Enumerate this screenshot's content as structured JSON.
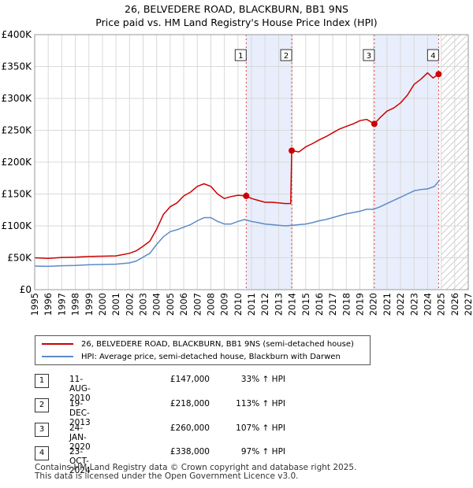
{
  "title_line1": "26, BELVEDERE ROAD, BLACKBURN, BB1 9NS",
  "title_line2": "Price paid vs. HM Land Registry's House Price Index (HPI)",
  "chart_data": {
    "type": "line",
    "title": "Price paid vs. HM Land Registry's House Price Index (HPI)",
    "xlabel": "",
    "ylabel": "",
    "xlim": [
      1995,
      2027
    ],
    "ylim": [
      0,
      400000
    ],
    "x_ticks": [
      "1995",
      "1996",
      "1997",
      "1998",
      "1999",
      "2000",
      "2001",
      "2002",
      "2003",
      "2004",
      "2005",
      "2006",
      "2007",
      "2008",
      "2009",
      "2010",
      "2011",
      "2012",
      "2013",
      "2014",
      "2015",
      "2016",
      "2017",
      "2018",
      "2019",
      "2020",
      "2021",
      "2022",
      "2023",
      "2024",
      "2025",
      "2026",
      "2027"
    ],
    "y_ticks": [
      {
        "value": 0,
        "label": "£0"
      },
      {
        "value": 50000,
        "label": "£50K"
      },
      {
        "value": 100000,
        "label": "£100K"
      },
      {
        "value": 150000,
        "label": "£150K"
      },
      {
        "value": 200000,
        "label": "£200K"
      },
      {
        "value": 250000,
        "label": "£250K"
      },
      {
        "value": 300000,
        "label": "£300K"
      },
      {
        "value": 350000,
        "label": "£350K"
      },
      {
        "value": 400000,
        "label": "£400K"
      }
    ],
    "shaded_ranges": [
      [
        2010.61,
        2013.97
      ],
      [
        2020.07,
        2024.81
      ]
    ],
    "forecast_start": 2025.0,
    "series": [
      {
        "name": "26, BELVEDERE ROAD, BLACKBURN, BB1 9NS (semi-detached house)",
        "color": "#cc0000",
        "x": [
          1995.0,
          1996.0,
          1997.0,
          1998.0,
          1999.0,
          2000.0,
          2001.0,
          2002.0,
          2002.5,
          2003.0,
          2003.5,
          2004.0,
          2004.5,
          2005.0,
          2005.5,
          2006.0,
          2006.5,
          2007.0,
          2007.5,
          2008.0,
          2008.5,
          2009.0,
          2009.5,
          2010.0,
          2010.61,
          2011.0,
          2011.5,
          2012.0,
          2012.5,
          2013.0,
          2013.5,
          2013.9,
          2013.97,
          2014.5,
          2015.0,
          2015.5,
          2016.0,
          2016.5,
          2017.0,
          2017.5,
          2018.0,
          2018.5,
          2019.0,
          2019.5,
          2020.07,
          2020.5,
          2021.0,
          2021.5,
          2022.0,
          2022.5,
          2023.0,
          2023.5,
          2024.0,
          2024.4,
          2024.81,
          2024.9
        ],
        "values": [
          50000,
          49000,
          50500,
          51000,
          52000,
          52500,
          53000,
          57000,
          61000,
          68000,
          76000,
          95000,
          118000,
          130000,
          136000,
          147000,
          153000,
          162000,
          166000,
          162000,
          150000,
          143000,
          146000,
          148000,
          147000,
          143000,
          140000,
          137000,
          137000,
          136000,
          135000,
          135000,
          218000,
          216000,
          224000,
          229000,
          235000,
          240000,
          246000,
          252000,
          256000,
          260000,
          265000,
          267000,
          260000,
          270000,
          280000,
          285000,
          293000,
          305000,
          322000,
          330000,
          340000,
          332000,
          338000,
          336000
        ]
      },
      {
        "name": "HPI: Average price, semi-detached house, Blackburn with Darwen",
        "color": "#5b8bc7",
        "x": [
          1995.0,
          1996.0,
          1997.0,
          1998.0,
          1999.0,
          2000.0,
          2001.0,
          2002.0,
          2002.5,
          2003.0,
          2003.5,
          2004.0,
          2004.5,
          2005.0,
          2005.5,
          2006.0,
          2006.5,
          2007.0,
          2007.5,
          2008.0,
          2008.5,
          2009.0,
          2009.5,
          2010.0,
          2010.5,
          2011.0,
          2011.5,
          2012.0,
          2012.5,
          2013.0,
          2013.5,
          2014.0,
          2014.5,
          2015.0,
          2015.5,
          2016.0,
          2016.5,
          2017.0,
          2017.5,
          2018.0,
          2018.5,
          2019.0,
          2019.5,
          2020.0,
          2020.5,
          2021.0,
          2021.5,
          2022.0,
          2022.5,
          2023.0,
          2023.5,
          2024.0,
          2024.5,
          2024.9
        ],
        "values": [
          37000,
          36500,
          37500,
          38000,
          39000,
          39500,
          40000,
          42000,
          45000,
          51000,
          57000,
          71000,
          83000,
          91000,
          94000,
          98000,
          102000,
          108000,
          113000,
          113000,
          107000,
          103000,
          103000,
          107000,
          110000,
          107000,
          105000,
          103000,
          102000,
          101000,
          100000,
          101000,
          102000,
          103000,
          105000,
          108000,
          110000,
          113000,
          116000,
          119000,
          121000,
          123000,
          126000,
          126000,
          130000,
          135000,
          140000,
          145000,
          150000,
          155000,
          157000,
          158000,
          162000,
          172000
        ]
      }
    ],
    "annotations": [
      {
        "label": "1",
        "x": 2010.61,
        "y": 147000
      },
      {
        "label": "2",
        "x": 2013.97,
        "y": 218000
      },
      {
        "label": "3",
        "x": 2020.07,
        "y": 260000
      },
      {
        "label": "4",
        "x": 2024.81,
        "y": 338000
      }
    ]
  },
  "legend": {
    "items": [
      {
        "label": "26, BELVEDERE ROAD, BLACKBURN, BB1 9NS (semi-detached house)",
        "color": "#cc0000"
      },
      {
        "label": "HPI: Average price, semi-detached house, Blackburn with Darwen",
        "color": "#5b8bc7"
      }
    ]
  },
  "transactions": [
    {
      "num": "1",
      "date": "11-AUG-2010",
      "price": "£147,000",
      "hpi": "33% ↑ HPI"
    },
    {
      "num": "2",
      "date": "19-DEC-2013",
      "price": "£218,000",
      "hpi": "113% ↑ HPI"
    },
    {
      "num": "3",
      "date": "24-JAN-2020",
      "price": "£260,000",
      "hpi": "107% ↑ HPI"
    },
    {
      "num": "4",
      "date": "23-OCT-2024",
      "price": "£338,000",
      "hpi": "97% ↑ HPI"
    }
  ],
  "footer": {
    "line1": "Contains HM Land Registry data © Crown copyright and database right 2025.",
    "line2": "This data is licensed under the Open Government Licence v3.0."
  }
}
